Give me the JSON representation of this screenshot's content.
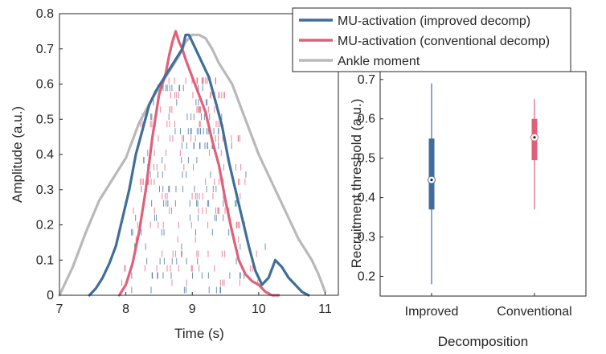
{
  "chart_data": [
    {
      "type": "line",
      "xlabel": "Time (s)",
      "ylabel": "Amplitude (a.u.)",
      "xlim": [
        7,
        11.2
      ],
      "ylim": [
        0,
        0.8
      ],
      "xticks": [
        7,
        8,
        9,
        10,
        11
      ],
      "yticks": [
        0,
        0.1,
        0.2,
        0.3,
        0.4,
        0.5,
        0.6,
        0.7,
        0.8
      ],
      "legend_position": "top-right",
      "series": [
        {
          "name": "MU-activation (improved decomp)",
          "color": "#3f6e9b",
          "x": [
            7.45,
            7.55,
            7.65,
            7.75,
            7.85,
            7.95,
            8.05,
            8.15,
            8.25,
            8.35,
            8.45,
            8.55,
            8.65,
            8.75,
            8.85,
            8.9,
            8.95,
            9.0,
            9.05,
            9.15,
            9.25,
            9.35,
            9.45,
            9.55,
            9.65,
            9.75,
            9.85,
            9.95,
            10.05,
            10.15,
            10.25,
            10.35,
            10.45,
            10.55,
            10.65,
            10.75
          ],
          "y": [
            0.0,
            0.02,
            0.05,
            0.09,
            0.14,
            0.22,
            0.3,
            0.4,
            0.47,
            0.54,
            0.58,
            0.61,
            0.64,
            0.67,
            0.7,
            0.74,
            0.74,
            0.72,
            0.7,
            0.66,
            0.62,
            0.55,
            0.48,
            0.38,
            0.3,
            0.22,
            0.14,
            0.07,
            0.03,
            0.05,
            0.1,
            0.08,
            0.05,
            0.03,
            0.01,
            0.0
          ]
        },
        {
          "name": "MU-activation (conventional decomp)",
          "color": "#e0607a",
          "x": [
            7.9,
            8.0,
            8.1,
            8.2,
            8.3,
            8.4,
            8.5,
            8.6,
            8.65,
            8.7,
            8.75,
            8.8,
            8.85,
            8.9,
            9.0,
            9.1,
            9.2,
            9.3,
            9.4,
            9.5,
            9.6,
            9.7,
            9.8,
            9.9,
            10.0,
            10.1,
            10.2,
            10.3
          ],
          "y": [
            0.0,
            0.03,
            0.09,
            0.18,
            0.3,
            0.45,
            0.57,
            0.63,
            0.68,
            0.72,
            0.75,
            0.72,
            0.7,
            0.67,
            0.62,
            0.57,
            0.52,
            0.44,
            0.37,
            0.27,
            0.18,
            0.1,
            0.06,
            0.04,
            0.03,
            0.01,
            0.0,
            0.0
          ]
        },
        {
          "name": "Ankle moment",
          "color": "#b9b9b9",
          "x": [
            7.0,
            7.2,
            7.4,
            7.6,
            7.8,
            8.0,
            8.2,
            8.4,
            8.6,
            8.8,
            8.9,
            9.0,
            9.1,
            9.2,
            9.3,
            9.4,
            9.6,
            9.8,
            10.0,
            10.2,
            10.4,
            10.6,
            10.8,
            10.9,
            11.0
          ],
          "y": [
            0.0,
            0.08,
            0.18,
            0.27,
            0.33,
            0.39,
            0.49,
            0.56,
            0.62,
            0.68,
            0.72,
            0.74,
            0.74,
            0.73,
            0.7,
            0.66,
            0.6,
            0.5,
            0.4,
            0.32,
            0.24,
            0.16,
            0.1,
            0.06,
            0.01
          ]
        }
      ]
    },
    {
      "type": "boxplot",
      "xlabel": "Decomposition",
      "ylabel": "Recruitment threshold (a.u.)",
      "ylim": [
        0.15,
        0.72
      ],
      "yticks": [
        0.2,
        0.3,
        0.4,
        0.5,
        0.6,
        0.7
      ],
      "categories": [
        "Improved",
        "Conventional"
      ],
      "boxes": [
        {
          "label": "Improved",
          "color": "#3f6e9b",
          "min": 0.18,
          "q1": 0.37,
          "median": 0.445,
          "q3": 0.55,
          "max": 0.69
        },
        {
          "label": "Conventional",
          "color": "#e0607a",
          "min": 0.37,
          "q1": 0.495,
          "median": 0.553,
          "q3": 0.6,
          "max": 0.65
        }
      ]
    }
  ]
}
